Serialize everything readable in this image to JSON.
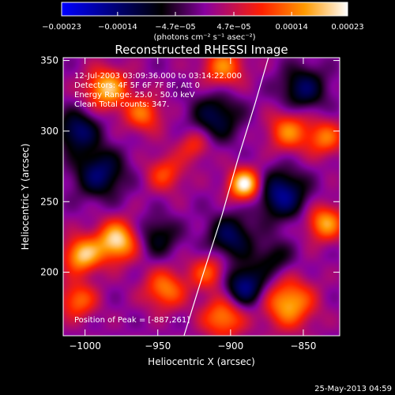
{
  "chart_data": {
    "type": "heatmap",
    "title": "Reconstructed RHESSI Image",
    "xlabel": "Heliocentric X (arcsec)",
    "ylabel": "Heliocentric Y (arcsec)",
    "xlim": [
      -1015,
      -825
    ],
    "ylim": [
      155,
      352
    ],
    "x_ticks": [
      -1000,
      -950,
      -900,
      -850
    ],
    "y_ticks": [
      200,
      250,
      300,
      350
    ],
    "x_tick_labels": [
      "−1000",
      "−950",
      "−900",
      "−850"
    ],
    "y_tick_labels": [
      "200",
      "250",
      "300",
      "350"
    ],
    "colorbar": {
      "ticks": [
        -0.00023,
        -0.00014,
        -4.7e-05,
        4.7e-05,
        0.00014,
        0.00023
      ],
      "tick_labels": [
        "−0.00023",
        "−0.00014",
        "−4.7e−05",
        "4.7e−05",
        "0.00014",
        "0.00023"
      ],
      "range": [
        -0.00023,
        0.00023
      ],
      "colors": [
        "#0000ff",
        "#000000",
        "#8800a0",
        "#ff2000",
        "#ff9a00",
        "#ffffff"
      ]
    },
    "units_line": "(photons cm⁻² s⁻¹ asec⁻²)",
    "annotations": [
      "12-Jul-2003 03:09:36.000 to 03:14:22.000",
      "Detectors: 4F 5F 6F 7F 8F, Att 0",
      "Energy Range: 25.0 - 50.0 keV",
      "Clean     Total counts: 347."
    ],
    "peak_label": "Position of Peak = [-887,261]",
    "peak": [
      -887,
      261
    ],
    "limb_points": [
      [
        -932,
        155
      ],
      [
        -920,
        195
      ],
      [
        -906,
        240
      ],
      [
        -895,
        280
      ],
      [
        -883,
        320
      ],
      [
        -874,
        352
      ]
    ],
    "blobs": [
      {
        "x": -890,
        "y": 262,
        "amp": 1.0,
        "s": 8
      },
      {
        "x": -978,
        "y": 222,
        "amp": 0.9,
        "s": 10
      },
      {
        "x": -1002,
        "y": 212,
        "amp": 0.8,
        "s": 9
      },
      {
        "x": -985,
        "y": 330,
        "amp": 0.8,
        "s": 10
      },
      {
        "x": -960,
        "y": 312,
        "amp": 0.55,
        "s": 9
      },
      {
        "x": -945,
        "y": 188,
        "amp": 0.6,
        "s": 10
      },
      {
        "x": -915,
        "y": 200,
        "amp": 0.5,
        "s": 9
      },
      {
        "x": -905,
        "y": 168,
        "amp": 0.65,
        "s": 10
      },
      {
        "x": -860,
        "y": 178,
        "amp": 0.75,
        "s": 12
      },
      {
        "x": -835,
        "y": 235,
        "amp": 0.7,
        "s": 9
      },
      {
        "x": -860,
        "y": 300,
        "amp": 0.6,
        "s": 10
      },
      {
        "x": -835,
        "y": 295,
        "amp": 0.55,
        "s": 9
      },
      {
        "x": -905,
        "y": 345,
        "amp": 0.6,
        "s": 10
      },
      {
        "x": -1005,
        "y": 180,
        "amp": 0.55,
        "s": 9
      },
      {
        "x": -945,
        "y": 270,
        "amp": 0.45,
        "s": 9
      },
      {
        "x": -925,
        "y": 290,
        "amp": 0.4,
        "s": 8
      },
      {
        "x": -990,
        "y": 270,
        "amp": -0.6,
        "s": 12
      },
      {
        "x": -900,
        "y": 225,
        "amp": -0.55,
        "s": 11
      },
      {
        "x": -865,
        "y": 255,
        "amp": -0.7,
        "s": 12
      },
      {
        "x": -910,
        "y": 310,
        "amp": -0.5,
        "s": 12
      },
      {
        "x": -890,
        "y": 190,
        "amp": -0.7,
        "s": 10
      },
      {
        "x": -1005,
        "y": 300,
        "amp": -0.6,
        "s": 10
      },
      {
        "x": -950,
        "y": 225,
        "amp": -0.4,
        "s": 10
      },
      {
        "x": -850,
        "y": 330,
        "amp": -0.55,
        "s": 11
      },
      {
        "x": -870,
        "y": 210,
        "amp": -0.35,
        "s": 9
      }
    ]
  },
  "footer_date": "25-May-2013 04:59"
}
